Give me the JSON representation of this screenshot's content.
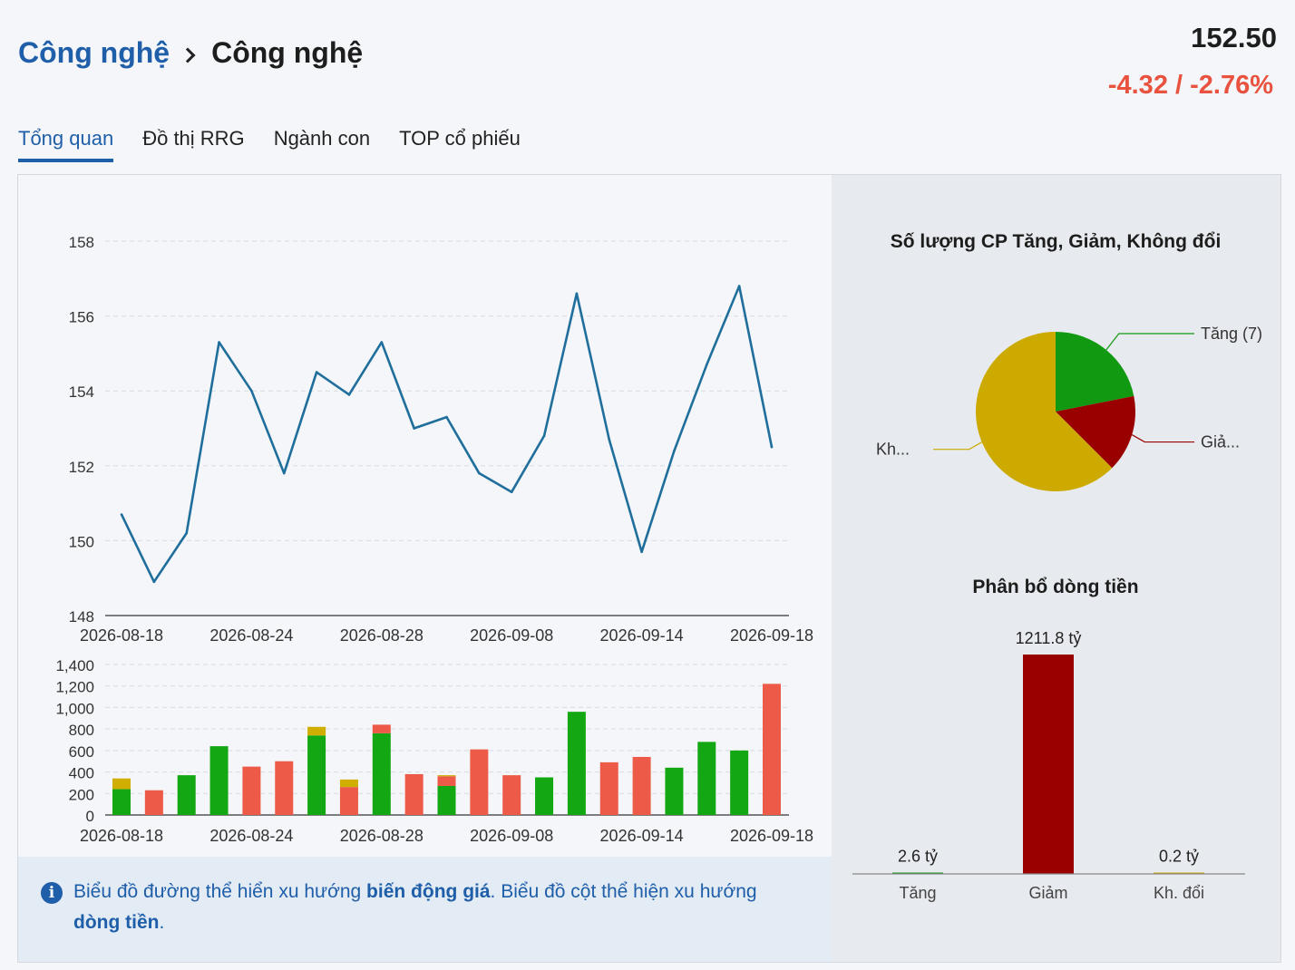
{
  "header": {
    "breadcrumb_parent": "Công nghệ",
    "breadcrumb_current": "Công nghệ",
    "price": "152.50",
    "change": "-4.32 / -2.76%"
  },
  "tabs": [
    {
      "label": "Tổng quan",
      "active": true
    },
    {
      "label": "Đồ thị RRG",
      "active": false
    },
    {
      "label": "Ngành con",
      "active": false
    },
    {
      "label": "TOP cổ phiếu",
      "active": false
    }
  ],
  "note": {
    "icon": "info-icon",
    "part1": "Biểu đồ đường thể hiển xu hướng ",
    "bold1": "biến động giá",
    "part2": ". Biểu đồ cột thể hiện xu hướng ",
    "bold2": "dòng tiền",
    "part3": "."
  },
  "colors": {
    "accent": "#1f5ea8",
    "line": "#1f6e9c",
    "up_bar": "#13a713",
    "down_bar": "#ee5a48",
    "flat_bar": "#cfae00",
    "pie_up": "#119911",
    "pie_down": "#990000",
    "pie_flat": "#ccaa00",
    "negative": "#e8523f"
  },
  "chart_data": [
    {
      "type": "line",
      "x_ticks": [
        "2026-08-18",
        "2026-08-24",
        "2026-08-28",
        "2026-09-08",
        "2026-09-14",
        "2026-09-18"
      ],
      "y_ticks": [
        "158",
        "156",
        "154",
        "152",
        "150",
        "148"
      ],
      "ylim": [
        148,
        158
      ],
      "grid": true,
      "values": [
        150.7,
        148.9,
        150.2,
        155.3,
        154.0,
        151.8,
        154.5,
        153.9,
        155.3,
        153.0,
        153.3,
        151.8,
        151.3,
        152.8,
        156.6,
        152.7,
        149.7,
        152.4,
        154.7,
        156.8,
        152.5
      ]
    },
    {
      "type": "bar",
      "stacked": true,
      "x_ticks": [
        "2026-08-18",
        "2026-08-24",
        "2026-08-28",
        "2026-09-08",
        "2026-09-14",
        "2026-09-18"
      ],
      "y_ticks": [
        "1,400",
        "1,200",
        "1,000",
        "800",
        "600",
        "400",
        "200",
        "0"
      ],
      "ylim": [
        0,
        1400
      ],
      "grid": true,
      "series": [
        {
          "color_key": "up_bar",
          "values": [
            240,
            0,
            370,
            640,
            0,
            0,
            740,
            0,
            760,
            0,
            270,
            0,
            0,
            350,
            960,
            0,
            0,
            440,
            680,
            600,
            0
          ]
        },
        {
          "color_key": "down_bar",
          "values": [
            0,
            230,
            0,
            0,
            450,
            500,
            0,
            260,
            80,
            380,
            90,
            610,
            370,
            0,
            0,
            490,
            540,
            0,
            0,
            0,
            1220
          ]
        },
        {
          "color_key": "flat_bar",
          "values": [
            100,
            0,
            0,
            0,
            0,
            0,
            80,
            70,
            0,
            0,
            10,
            0,
            0,
            0,
            0,
            0,
            0,
            0,
            0,
            0,
            0
          ]
        }
      ]
    },
    {
      "type": "pie",
      "title": "Số lượng CP Tăng, Giảm, Không đổi",
      "slices": [
        {
          "label": "Tăng (7)",
          "value": 7,
          "color_key": "pie_up"
        },
        {
          "label": "Giả...",
          "value": 5,
          "color_key": "pie_down"
        },
        {
          "label": "Kh...",
          "value": 20,
          "color_key": "pie_flat"
        }
      ]
    },
    {
      "type": "bar",
      "title": "Phân bổ dòng tiền",
      "categories": [
        "Tăng",
        "Giảm",
        "Kh. đổi"
      ],
      "values": [
        2.6,
        1211.8,
        0.2
      ],
      "data_labels": [
        "2.6 tỷ",
        "1211.8 tỷ",
        "0.2 tỷ"
      ],
      "color_keys": [
        "pie_up",
        "pie_down",
        "pie_flat"
      ]
    }
  ]
}
